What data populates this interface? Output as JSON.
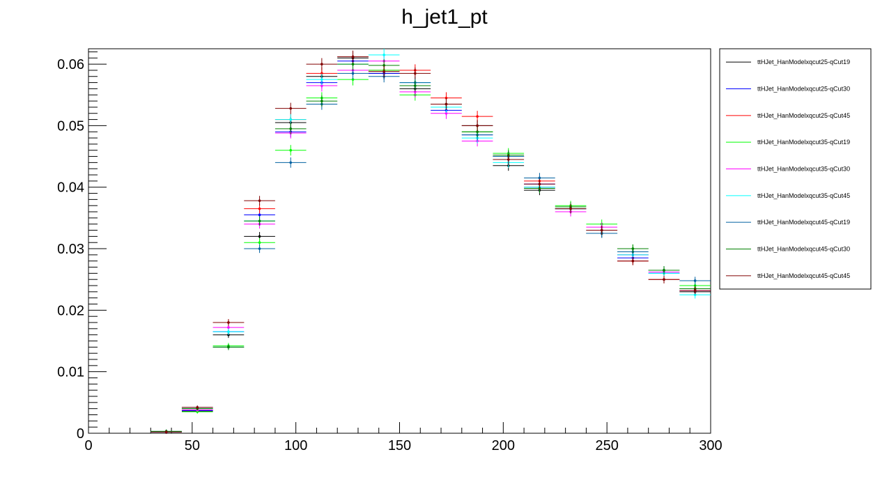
{
  "chart_data": {
    "type": "scatter",
    "title": "h_jet1_pt",
    "xlabel": "",
    "ylabel": "",
    "xlim": [
      0,
      300
    ],
    "ylim": [
      0,
      0.0625
    ],
    "x_ticks": [
      0,
      50,
      100,
      150,
      200,
      250,
      300
    ],
    "x_tick_labels": [
      "0",
      "50",
      "100",
      "150",
      "200",
      "250",
      "300"
    ],
    "y_ticks": [
      0,
      0.01,
      0.02,
      0.03,
      0.04,
      0.05,
      0.06
    ],
    "y_tick_labels": [
      "0",
      "0.01",
      "0.02",
      "0.03",
      "0.04",
      "0.05",
      "0.06"
    ],
    "grid": false,
    "legend_position": "top-right, outside plot",
    "bin_width": 15,
    "x": [
      22.5,
      37.5,
      52.5,
      67.5,
      82.5,
      97.5,
      112.5,
      127.5,
      142.5,
      157.5,
      172.5,
      187.5,
      202.5,
      217.5,
      232.5,
      247.5,
      262.5,
      277.5,
      292.5
    ],
    "series": [
      {
        "name": "ttHJet_HanModelxqcut25-qCut19",
        "color": "#000000",
        "values": [
          0,
          0.0002,
          0.0036,
          0.016,
          0.032,
          0.0505,
          0.058,
          0.061,
          0.0585,
          0.056,
          0.0535,
          0.05,
          0.0435,
          0.0395,
          0.0365,
          0.0325,
          0.029,
          0.0265,
          0.023
        ]
      },
      {
        "name": "ttHJet_HanModelxqcut25-qCut30",
        "color": "#0000ff",
        "values": [
          0,
          0.0002,
          0.0037,
          0.0165,
          0.0355,
          0.049,
          0.057,
          0.0605,
          0.0585,
          0.0565,
          0.0525,
          0.0485,
          0.045,
          0.0405,
          0.0365,
          0.033,
          0.0285,
          0.026,
          0.0235
        ]
      },
      {
        "name": "ttHJet_HanModelxqcut25-qCut45",
        "color": "#ff0000",
        "values": [
          0,
          0.0002,
          0.004,
          0.018,
          0.0365,
          0.051,
          0.0585,
          0.0612,
          0.059,
          0.059,
          0.0545,
          0.0515,
          0.045,
          0.041,
          0.0365,
          0.0325,
          0.028,
          0.025,
          0.0235
        ]
      },
      {
        "name": "ttHJet_HanModelxqcut35-qCut19",
        "color": "#00ff00",
        "values": [
          0,
          0.0003,
          0.0035,
          0.0142,
          0.031,
          0.046,
          0.0545,
          0.0575,
          0.059,
          0.055,
          0.0535,
          0.049,
          0.0455,
          0.04,
          0.037,
          0.034,
          0.03,
          0.0265,
          0.024
        ]
      },
      {
        "name": "ttHJet_HanModelxqcut35-qCut30",
        "color": "#ff00ff",
        "values": [
          0,
          0.0002,
          0.0038,
          0.0172,
          0.034,
          0.0488,
          0.0565,
          0.059,
          0.0605,
          0.0555,
          0.052,
          0.0475,
          0.045,
          0.04,
          0.036,
          0.0335,
          0.029,
          0.0262,
          0.0232
        ]
      },
      {
        "name": "ttHJet_HanModelxqcut35-qCut45",
        "color": "#00ffff",
        "values": [
          0,
          0.0002,
          0.004,
          0.0165,
          0.0345,
          0.051,
          0.0575,
          0.06,
          0.0615,
          0.057,
          0.053,
          0.048,
          0.044,
          0.04,
          0.0365,
          0.0325,
          0.029,
          0.026,
          0.0225
        ]
      },
      {
        "name": "ttHJet_HanModelxqcut45-qCut19",
        "color": "#0060a0",
        "values": [
          0,
          0.0003,
          0.0042,
          0.014,
          0.03,
          0.044,
          0.0535,
          0.0585,
          0.058,
          0.057,
          0.0535,
          0.0485,
          0.045,
          0.0415,
          0.0365,
          0.0325,
          0.0295,
          0.0265,
          0.0248
        ]
      },
      {
        "name": "ttHJet_HanModelxqcut45-qCut30",
        "color": "#008000",
        "values": [
          0,
          0.0003,
          0.004,
          0.014,
          0.0345,
          0.0495,
          0.054,
          0.06,
          0.0598,
          0.0565,
          0.0535,
          0.049,
          0.0452,
          0.0398,
          0.0368,
          0.033,
          0.03,
          0.0265,
          0.0235
        ]
      },
      {
        "name": "ttHJet_HanModelxqcut45-qCut45",
        "color": "#800000",
        "values": [
          0,
          0.0002,
          0.0042,
          0.018,
          0.0378,
          0.0528,
          0.06,
          0.0612,
          0.0588,
          0.0585,
          0.0535,
          0.05,
          0.0445,
          0.0405,
          0.0365,
          0.033,
          0.028,
          0.025,
          0.0232
        ]
      }
    ]
  }
}
